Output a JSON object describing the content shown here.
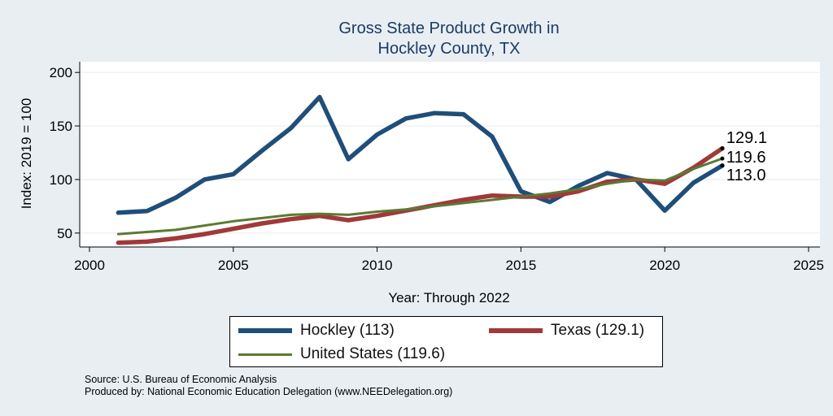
{
  "chart_data": {
    "type": "line",
    "title": "Gross State Product Growth in",
    "subtitle": "Hockley County, TX",
    "xlabel": "Year: Through 2022",
    "ylabel": "Index: 2019 = 100",
    "xlim": [
      2000,
      2025
    ],
    "ylim": [
      40,
      210
    ],
    "x_ticks": [
      2000,
      2005,
      2010,
      2015,
      2020,
      2025
    ],
    "y_ticks": [
      50,
      100,
      150,
      200
    ],
    "grid": true,
    "legend_position": "bottom",
    "x": [
      2001,
      2002,
      2003,
      2004,
      2005,
      2006,
      2007,
      2008,
      2009,
      2010,
      2011,
      2012,
      2013,
      2014,
      2015,
      2016,
      2017,
      2018,
      2019,
      2020,
      2021,
      2022
    ],
    "series": [
      {
        "name": "Hockley",
        "legend_label": "Hockley  (113)",
        "color": "#1f4e79",
        "width": 5.5,
        "end_label": "113.0",
        "values": [
          69,
          70.5,
          83,
          100,
          105,
          127,
          148,
          177,
          119,
          142,
          157,
          162,
          161,
          140,
          89,
          79,
          94,
          106,
          100,
          71,
          97,
          113
        ]
      },
      {
        "name": "Texas",
        "legend_label": "Texas (129.1)",
        "color": "#a0393a",
        "width": 5.5,
        "end_label": "129.1",
        "values": [
          41,
          42,
          45,
          49,
          54,
          59,
          63,
          66,
          62,
          66,
          71,
          76,
          81,
          85,
          84,
          84,
          89,
          98,
          100,
          96,
          111,
          129.1
        ]
      },
      {
        "name": "United States",
        "legend_label": "United States (119.6)",
        "color": "#5a7a33",
        "width": 3,
        "end_label": "119.6",
        "values": [
          49,
          51,
          53,
          57,
          61,
          64,
          67,
          68,
          67,
          70,
          72,
          75,
          78,
          81,
          84,
          87,
          91,
          96,
          100,
          99,
          110,
          119.6
        ]
      }
    ]
  },
  "source_line": "Source: U.S. Bureau of Economic Analysis",
  "produced_line": "Produced by: National Economic Education Delegation (www.NEEDelegation.org)"
}
